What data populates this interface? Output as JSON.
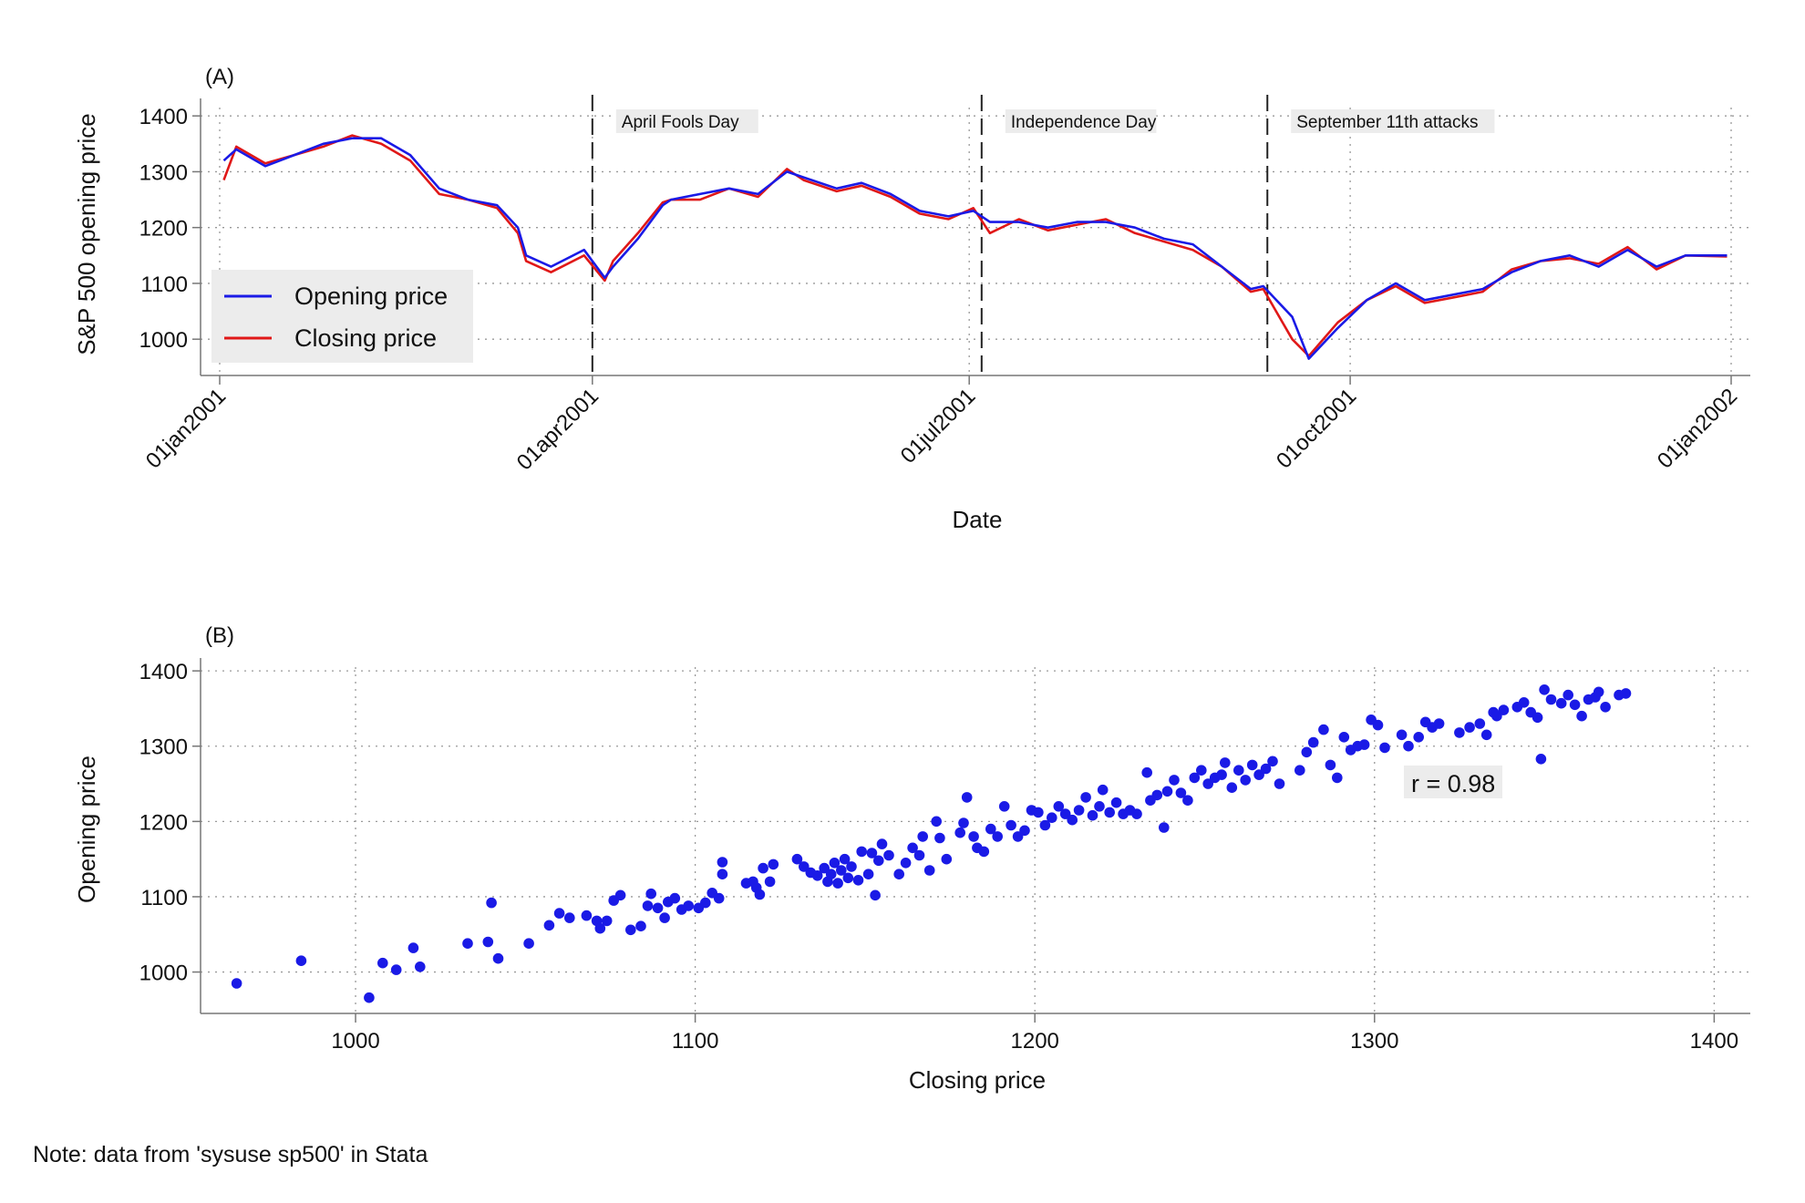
{
  "note": "Note: data from 'sysuse sp500' in Stata",
  "colors": {
    "opening": "#1a1ae6",
    "closing": "#e01818",
    "scatter": "#1a1ae6"
  },
  "chart_data": [
    {
      "panel": "(A)",
      "type": "line",
      "xlabel": "Date",
      "ylabel": "S&P 500 opening price",
      "yticks": [
        1000,
        1100,
        1200,
        1300,
        1400
      ],
      "ylim": [
        935,
        1415
      ],
      "xlim": [
        "2001-01-01",
        "2002-01-01"
      ],
      "xtick_labels": [
        "01jan2001",
        "01apr2001",
        "01jul2001",
        "01oct2001",
        "01jan2002"
      ],
      "xtick_dates": [
        "2001-01-01",
        "2001-04-01",
        "2001-07-01",
        "2001-10-01",
        "2002-01-01"
      ],
      "grid": true,
      "legend_position": "bottom-left",
      "events": [
        {
          "label": "April Fools Day",
          "date": "2001-04-01"
        },
        {
          "label": "Independence Day",
          "date": "2001-07-04"
        },
        {
          "label": "September 11th attacks",
          "date": "2001-09-11"
        }
      ],
      "series": [
        {
          "name": "Opening price",
          "x": [
            "2001-01-02",
            "2001-01-05",
            "2001-01-12",
            "2001-01-19",
            "2001-01-26",
            "2001-02-02",
            "2001-02-09",
            "2001-02-16",
            "2001-02-23",
            "2001-03-02",
            "2001-03-09",
            "2001-03-14",
            "2001-03-16",
            "2001-03-22",
            "2001-03-30",
            "2001-04-04",
            "2001-04-06",
            "2001-04-12",
            "2001-04-18",
            "2001-04-20",
            "2001-04-27",
            "2001-05-04",
            "2001-05-11",
            "2001-05-18",
            "2001-05-22",
            "2001-05-30",
            "2001-06-05",
            "2001-06-12",
            "2001-06-19",
            "2001-06-26",
            "2001-07-02",
            "2001-07-06",
            "2001-07-13",
            "2001-07-20",
            "2001-07-27",
            "2001-08-03",
            "2001-08-10",
            "2001-08-17",
            "2001-08-24",
            "2001-08-31",
            "2001-09-07",
            "2001-09-10",
            "2001-09-17",
            "2001-09-21",
            "2001-09-28",
            "2001-10-05",
            "2001-10-12",
            "2001-10-19",
            "2001-10-26",
            "2001-11-02",
            "2001-11-09",
            "2001-11-16",
            "2001-11-23",
            "2001-11-30",
            "2001-12-07",
            "2001-12-14",
            "2001-12-21",
            "2001-12-31"
          ],
          "y": [
            1320,
            1340,
            1310,
            1330,
            1350,
            1360,
            1360,
            1330,
            1270,
            1250,
            1240,
            1200,
            1150,
            1130,
            1160,
            1110,
            1130,
            1180,
            1240,
            1250,
            1260,
            1270,
            1260,
            1300,
            1290,
            1270,
            1280,
            1260,
            1230,
            1220,
            1230,
            1210,
            1210,
            1200,
            1210,
            1210,
            1200,
            1180,
            1170,
            1130,
            1090,
            1095,
            1040,
            965,
            1020,
            1070,
            1100,
            1070,
            1080,
            1090,
            1120,
            1140,
            1150,
            1130,
            1160,
            1130,
            1150,
            1150
          ]
        },
        {
          "name": "Closing price",
          "x": [
            "2001-01-02",
            "2001-01-05",
            "2001-01-12",
            "2001-01-19",
            "2001-01-26",
            "2001-02-02",
            "2001-02-09",
            "2001-02-16",
            "2001-02-23",
            "2001-03-02",
            "2001-03-09",
            "2001-03-14",
            "2001-03-16",
            "2001-03-22",
            "2001-03-30",
            "2001-04-04",
            "2001-04-06",
            "2001-04-12",
            "2001-04-18",
            "2001-04-20",
            "2001-04-27",
            "2001-05-04",
            "2001-05-11",
            "2001-05-18",
            "2001-05-22",
            "2001-05-30",
            "2001-06-05",
            "2001-06-12",
            "2001-06-19",
            "2001-06-26",
            "2001-07-02",
            "2001-07-06",
            "2001-07-13",
            "2001-07-20",
            "2001-07-27",
            "2001-08-03",
            "2001-08-10",
            "2001-08-17",
            "2001-08-24",
            "2001-08-31",
            "2001-09-07",
            "2001-09-10",
            "2001-09-17",
            "2001-09-21",
            "2001-09-28",
            "2001-10-05",
            "2001-10-12",
            "2001-10-19",
            "2001-10-26",
            "2001-11-02",
            "2001-11-09",
            "2001-11-16",
            "2001-11-23",
            "2001-11-30",
            "2001-12-07",
            "2001-12-14",
            "2001-12-21",
            "2001-12-31"
          ],
          "y": [
            1285,
            1345,
            1315,
            1330,
            1345,
            1365,
            1350,
            1320,
            1260,
            1250,
            1235,
            1190,
            1140,
            1120,
            1150,
            1105,
            1140,
            1190,
            1245,
            1250,
            1250,
            1270,
            1255,
            1305,
            1285,
            1265,
            1275,
            1255,
            1225,
            1215,
            1235,
            1190,
            1215,
            1195,
            1205,
            1215,
            1190,
            1175,
            1160,
            1130,
            1085,
            1090,
            1000,
            970,
            1030,
            1070,
            1095,
            1065,
            1075,
            1085,
            1125,
            1140,
            1145,
            1135,
            1165,
            1125,
            1150,
            1148
          ]
        }
      ]
    },
    {
      "panel": "(B)",
      "type": "scatter",
      "xlabel": "Closing price",
      "ylabel": "Opening price",
      "xticks": [
        1000,
        1100,
        1200,
        1300,
        1400
      ],
      "yticks": [
        1000,
        1100,
        1200,
        1300,
        1400
      ],
      "xlim": [
        960,
        1405
      ],
      "ylim": [
        945,
        1405
      ],
      "grid": true,
      "annotation": "r = 0.98",
      "points": [
        [
          965,
          985
        ],
        [
          984,
          1015
        ],
        [
          1004,
          966
        ],
        [
          1008,
          1012
        ],
        [
          1012,
          1003
        ],
        [
          1017,
          1032
        ],
        [
          1019,
          1007
        ],
        [
          1033,
          1038
        ],
        [
          1039,
          1040
        ],
        [
          1040,
          1092
        ],
        [
          1042,
          1018
        ],
        [
          1051,
          1038
        ],
        [
          1057,
          1062
        ],
        [
          1060,
          1078
        ],
        [
          1063,
          1072
        ],
        [
          1068,
          1075
        ],
        [
          1071,
          1068
        ],
        [
          1072,
          1058
        ],
        [
          1074,
          1068
        ],
        [
          1076,
          1095
        ],
        [
          1078,
          1102
        ],
        [
          1081,
          1056
        ],
        [
          1084,
          1061
        ],
        [
          1086,
          1088
        ],
        [
          1087,
          1104
        ],
        [
          1089,
          1085
        ],
        [
          1091,
          1072
        ],
        [
          1092,
          1093
        ],
        [
          1094,
          1098
        ],
        [
          1096,
          1083
        ],
        [
          1098,
          1088
        ],
        [
          1101,
          1085
        ],
        [
          1103,
          1092
        ],
        [
          1105,
          1105
        ],
        [
          1107,
          1098
        ],
        [
          1108,
          1130
        ],
        [
          1108,
          1146
        ],
        [
          1115,
          1118
        ],
        [
          1117,
          1120
        ],
        [
          1118,
          1112
        ],
        [
          1119,
          1103
        ],
        [
          1120,
          1138
        ],
        [
          1122,
          1120
        ],
        [
          1123,
          1143
        ],
        [
          1130,
          1150
        ],
        [
          1132,
          1140
        ],
        [
          1134,
          1132
        ],
        [
          1136,
          1128
        ],
        [
          1138,
          1138
        ],
        [
          1139,
          1120
        ],
        [
          1140,
          1130
        ],
        [
          1141,
          1145
        ],
        [
          1142,
          1118
        ],
        [
          1143,
          1135
        ],
        [
          1144,
          1150
        ],
        [
          1145,
          1125
        ],
        [
          1146,
          1140
        ],
        [
          1148,
          1122
        ],
        [
          1149,
          1160
        ],
        [
          1151,
          1130
        ],
        [
          1152,
          1158
        ],
        [
          1153,
          1102
        ],
        [
          1154,
          1148
        ],
        [
          1155,
          1170
        ],
        [
          1157,
          1155
        ],
        [
          1160,
          1130
        ],
        [
          1162,
          1145
        ],
        [
          1164,
          1165
        ],
        [
          1166,
          1155
        ],
        [
          1167,
          1180
        ],
        [
          1169,
          1135
        ],
        [
          1171,
          1200
        ],
        [
          1172,
          1178
        ],
        [
          1174,
          1150
        ],
        [
          1178,
          1185
        ],
        [
          1179,
          1198
        ],
        [
          1180,
          1232
        ],
        [
          1182,
          1180
        ],
        [
          1183,
          1165
        ],
        [
          1185,
          1160
        ],
        [
          1187,
          1190
        ],
        [
          1189,
          1180
        ],
        [
          1191,
          1220
        ],
        [
          1193,
          1195
        ],
        [
          1195,
          1180
        ],
        [
          1197,
          1188
        ],
        [
          1199,
          1215
        ],
        [
          1201,
          1212
        ],
        [
          1203,
          1195
        ],
        [
          1205,
          1205
        ],
        [
          1207,
          1220
        ],
        [
          1209,
          1210
        ],
        [
          1211,
          1202
        ],
        [
          1213,
          1215
        ],
        [
          1215,
          1232
        ],
        [
          1217,
          1208
        ],
        [
          1219,
          1220
        ],
        [
          1220,
          1242
        ],
        [
          1222,
          1212
        ],
        [
          1224,
          1225
        ],
        [
          1226,
          1210
        ],
        [
          1228,
          1215
        ],
        [
          1230,
          1210
        ],
        [
          1233,
          1265
        ],
        [
          1234,
          1228
        ],
        [
          1236,
          1235
        ],
        [
          1238,
          1192
        ],
        [
          1239,
          1240
        ],
        [
          1241,
          1255
        ],
        [
          1243,
          1238
        ],
        [
          1245,
          1228
        ],
        [
          1247,
          1258
        ],
        [
          1249,
          1268
        ],
        [
          1251,
          1250
        ],
        [
          1253,
          1258
        ],
        [
          1255,
          1262
        ],
        [
          1256,
          1278
        ],
        [
          1258,
          1245
        ],
        [
          1260,
          1268
        ],
        [
          1262,
          1255
        ],
        [
          1264,
          1275
        ],
        [
          1266,
          1262
        ],
        [
          1268,
          1270
        ],
        [
          1270,
          1280
        ],
        [
          1272,
          1250
        ],
        [
          1278,
          1268
        ],
        [
          1280,
          1292
        ],
        [
          1282,
          1305
        ],
        [
          1285,
          1322
        ],
        [
          1287,
          1275
        ],
        [
          1289,
          1258
        ],
        [
          1291,
          1312
        ],
        [
          1293,
          1295
        ],
        [
          1295,
          1300
        ],
        [
          1297,
          1302
        ],
        [
          1299,
          1335
        ],
        [
          1301,
          1328
        ],
        [
          1303,
          1298
        ],
        [
          1308,
          1315
        ],
        [
          1310,
          1300
        ],
        [
          1313,
          1312
        ],
        [
          1315,
          1332
        ],
        [
          1317,
          1325
        ],
        [
          1319,
          1330
        ],
        [
          1325,
          1318
        ],
        [
          1328,
          1325
        ],
        [
          1331,
          1330
        ],
        [
          1333,
          1315
        ],
        [
          1335,
          1345
        ],
        [
          1336,
          1340
        ],
        [
          1338,
          1348
        ],
        [
          1342,
          1352
        ],
        [
          1344,
          1358
        ],
        [
          1346,
          1345
        ],
        [
          1348,
          1338
        ],
        [
          1350,
          1375
        ],
        [
          1352,
          1362
        ],
        [
          1355,
          1357
        ],
        [
          1357,
          1368
        ],
        [
          1359,
          1355
        ],
        [
          1361,
          1340
        ],
        [
          1363,
          1362
        ],
        [
          1365,
          1365
        ],
        [
          1366,
          1372
        ],
        [
          1368,
          1352
        ],
        [
          1372,
          1368
        ],
        [
          1374,
          1370
        ],
        [
          1349,
          1283
        ]
      ]
    }
  ]
}
